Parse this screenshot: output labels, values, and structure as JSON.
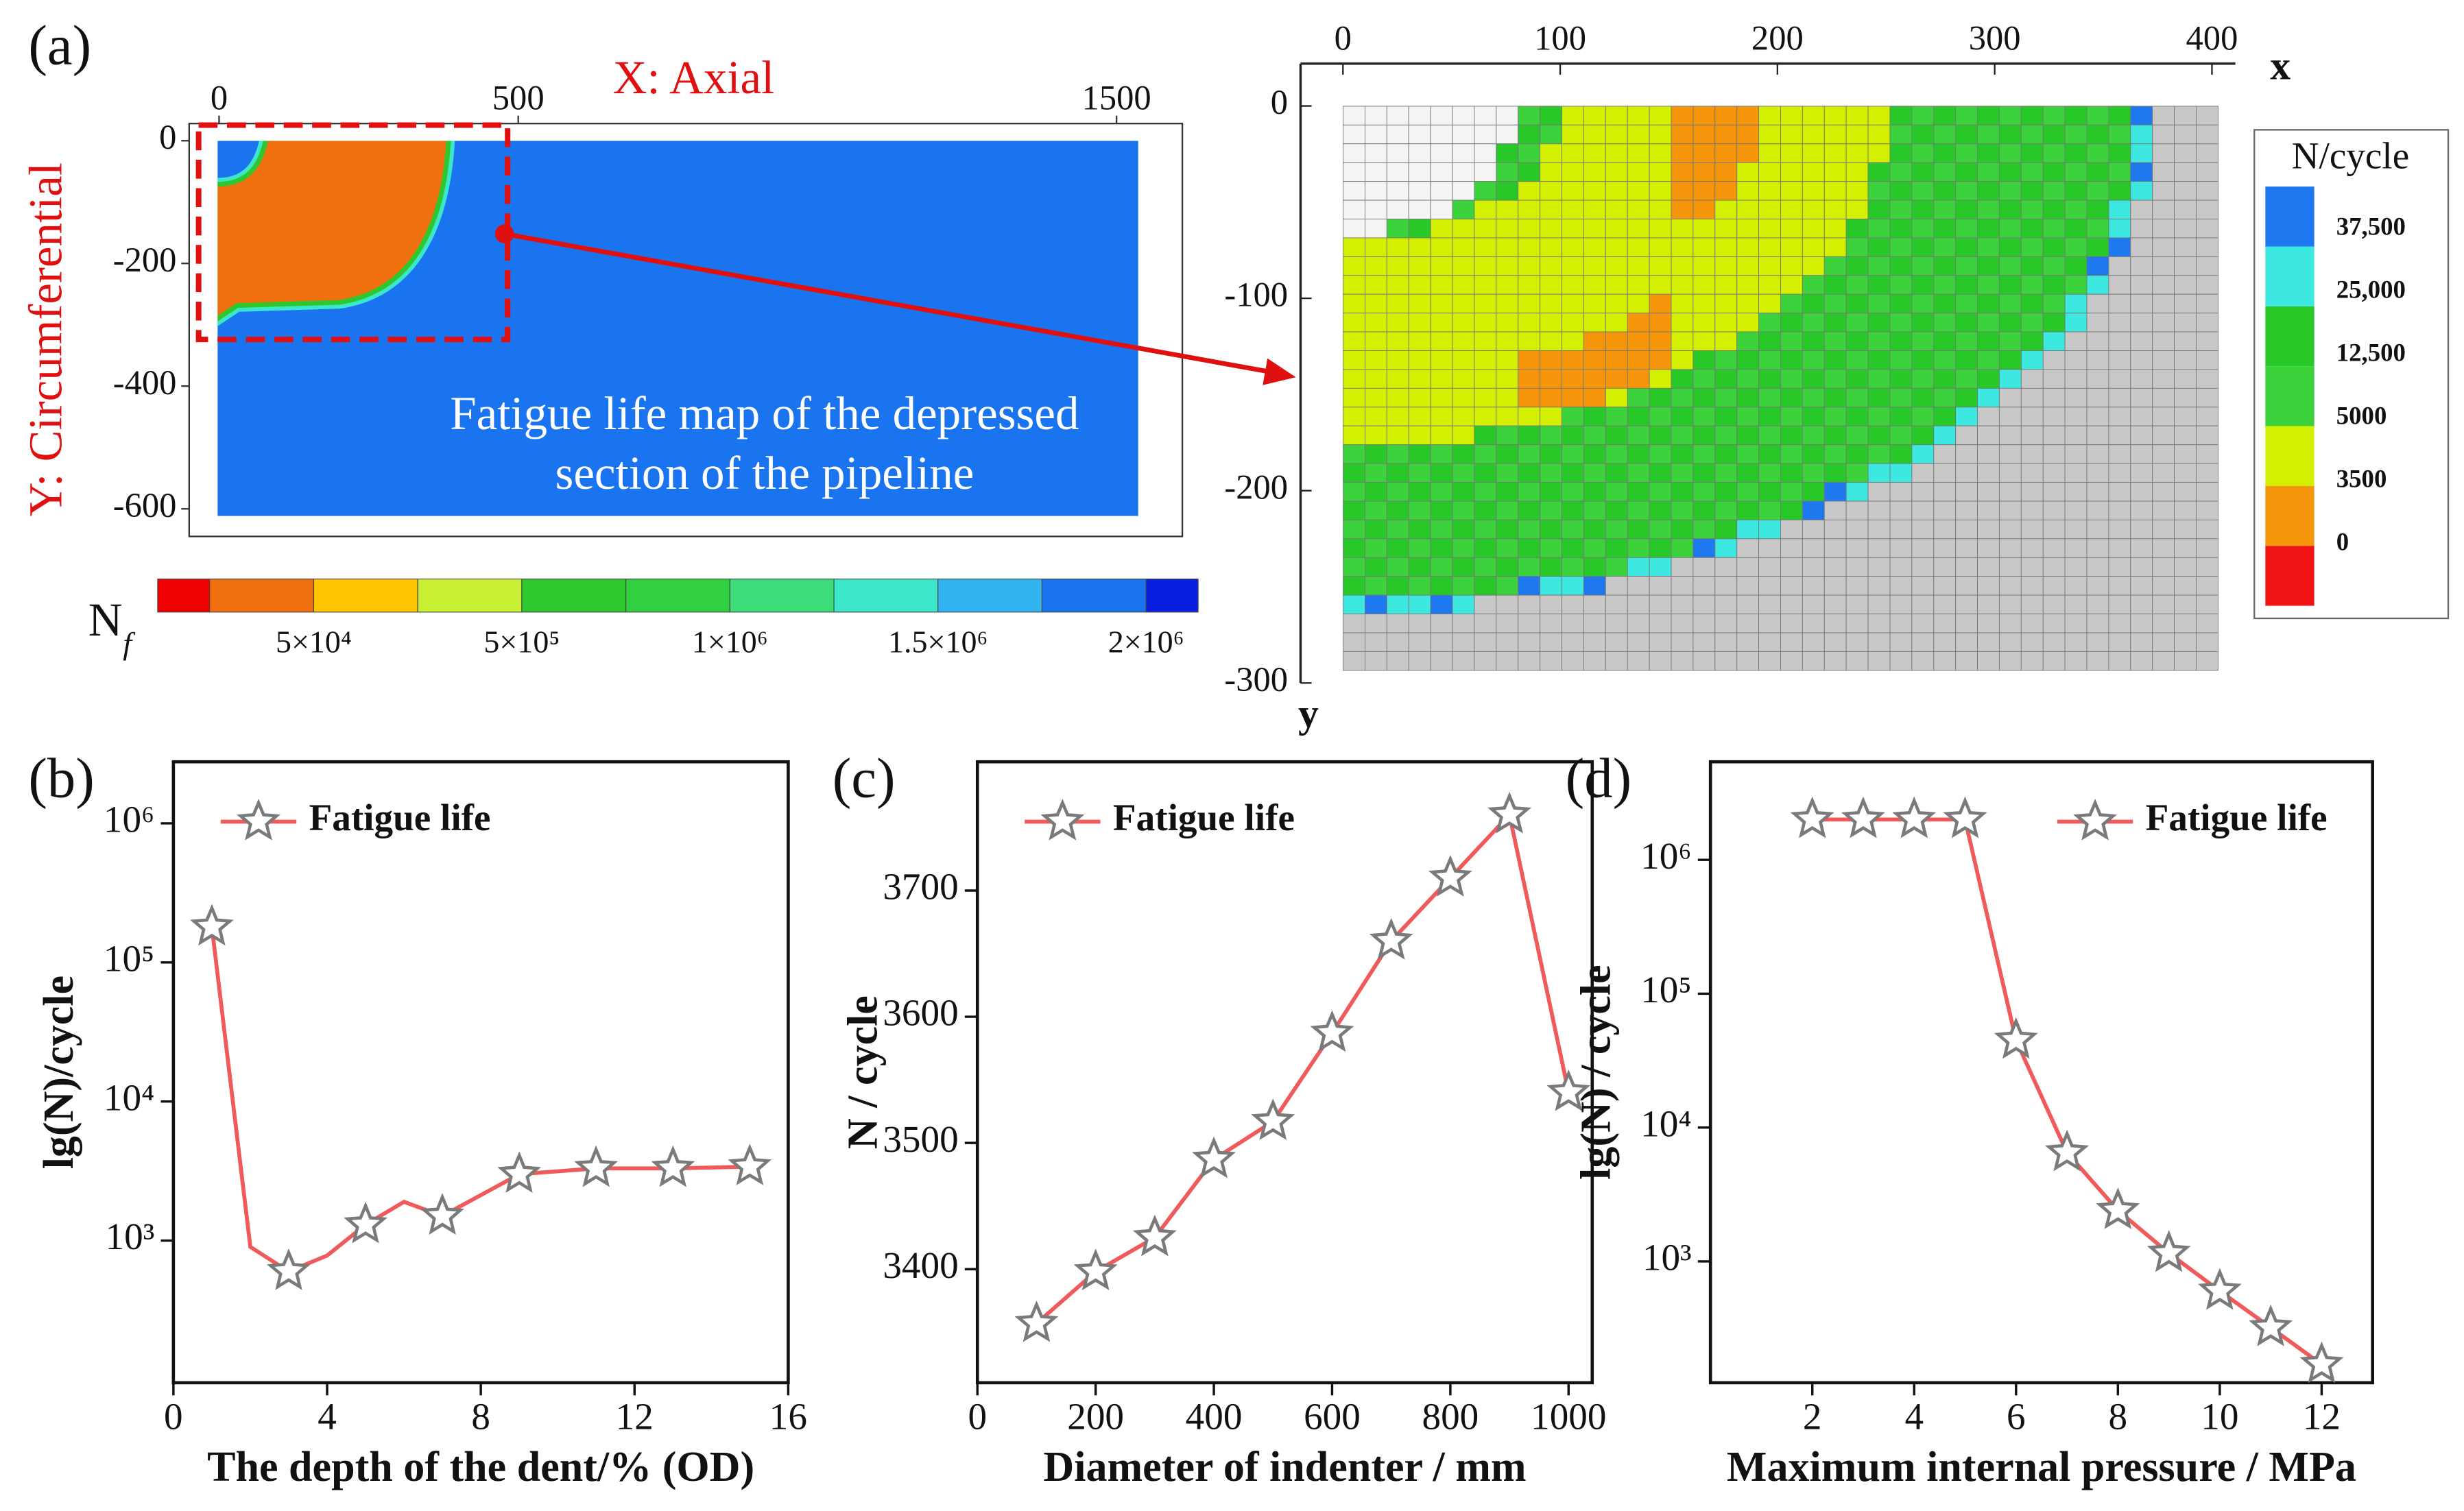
{
  "chart_data": [
    {
      "type": "contour",
      "panel": "(a)",
      "xlabel": "X: Axial",
      "ylabel": "Y: Circumferential",
      "xlim": [
        -50,
        1610
      ],
      "xticks": [
        0,
        500,
        1500
      ],
      "ylim": [
        -645,
        28
      ],
      "yticks": [
        0,
        -200,
        -400,
        -600
      ],
      "annotation": [
        "Fatigue life map of the depressed",
        "section of the pipeline"
      ],
      "colorbar_label": "N",
      "colorbar_label_sub": "f",
      "colorbar_colors": [
        "#f00000",
        "#f07010",
        "#ffc400",
        "#c8f032",
        "#2ec82e",
        "#30d040",
        "#3cdc78",
        "#3ce6c8",
        "#32b4f0",
        "#1a74f0",
        "#0a1ee0"
      ],
      "colorbar_ticks": [
        {
          "value": 50000,
          "label": "5×10⁴"
        },
        {
          "value": 500000,
          "label": "5×10⁵"
        },
        {
          "value": 1000000,
          "label": "1×10⁶"
        },
        {
          "value": 1500000,
          "label": "1.5×10⁶"
        },
        {
          "value": 2000000,
          "label": "2×10⁶"
        }
      ]
    },
    {
      "type": "cellmap",
      "xlabel": "x",
      "ylabel": "y",
      "xlim": [
        -19.5,
        410.8
      ],
      "xticks": [
        0,
        100,
        200,
        300,
        400
      ],
      "ylim": [
        -300,
        22
      ],
      "yticks": [
        0,
        -100,
        -200,
        -300
      ],
      "legend_title": "N/cycle",
      "legend_labels": [
        "37,500",
        "25,000",
        "12,500",
        "5000",
        "3500",
        "0"
      ],
      "legend_colors": [
        "#1e78f0",
        "#3ce8e0",
        "#28c828",
        "#3cd23c",
        "#d2f000",
        "#f5960a",
        "#f01414"
      ]
    },
    {
      "type": "line",
      "panel": "(b)",
      "xlabel": "The depth of the dent/% (OD)",
      "ylabel": "lg(N)/cycle",
      "x": [
        1,
        2,
        3,
        4,
        5,
        6,
        7,
        9,
        11,
        13,
        15
      ],
      "xlim": [
        0,
        16
      ],
      "xticks": [
        0,
        4,
        8,
        12,
        16
      ],
      "yscale": "log",
      "ylim": [
        95,
        2770000
      ],
      "yticks": [
        {
          "value": 1000,
          "label": "10³"
        },
        {
          "value": 10000,
          "label": "10⁴"
        },
        {
          "value": 100000,
          "label": "10⁵"
        },
        {
          "value": 1000000,
          "label": "10⁶"
        }
      ],
      "legend": "upper left",
      "series": [
        {
          "name": "Fatigue life",
          "color": "#f05a5a",
          "values": [
            180000,
            900,
            600,
            780,
            1300,
            1900,
            1500,
            3000,
            3300,
            3300,
            3400
          ],
          "markers": [
            true,
            false,
            true,
            false,
            true,
            false,
            true,
            true,
            true,
            true,
            true
          ]
        }
      ]
    },
    {
      "type": "line",
      "panel": "(c)",
      "xlabel": "Diameter of indenter / mm",
      "ylabel": "N / cycle",
      "x": [
        100,
        200,
        300,
        400,
        500,
        600,
        700,
        800,
        900,
        1000
      ],
      "xlim": [
        0,
        1040
      ],
      "xticks": [
        0,
        200,
        400,
        600,
        800,
        1000
      ],
      "ylim": [
        3310,
        3802
      ],
      "yticks": [
        3400,
        3500,
        3600,
        3700
      ],
      "legend": "upper left",
      "series": [
        {
          "name": "Fatigue life",
          "color": "#f05a5a",
          "values": [
            3357,
            3398,
            3425,
            3487,
            3517,
            3587,
            3660,
            3710,
            3760,
            3540
          ]
        }
      ]
    },
    {
      "type": "line",
      "panel": "(d)",
      "xlabel": "Maximum internal pressure / MPa",
      "ylabel": "lg(N) / cycle",
      "x": [
        2,
        3,
        4,
        5,
        6,
        7,
        8,
        9,
        10,
        11,
        12
      ],
      "xlim": [
        0,
        13
      ],
      "xticks": [
        2,
        4,
        6,
        8,
        10,
        12
      ],
      "yscale": "log",
      "ylim": [
        124,
        5400000
      ],
      "yticks": [
        {
          "value": 1000,
          "label": "10³"
        },
        {
          "value": 10000,
          "label": "10⁴"
        },
        {
          "value": 100000,
          "label": "10⁵"
        },
        {
          "value": 1000000,
          "label": "10⁶"
        }
      ],
      "legend": "upper right",
      "series": [
        {
          "name": "Fatigue life",
          "color": "#f05a5a",
          "values": [
            2000000,
            2000000,
            2000000,
            2000000,
            45000,
            6500,
            2400,
            1150,
            600,
            320,
            170
          ]
        }
      ]
    }
  ]
}
